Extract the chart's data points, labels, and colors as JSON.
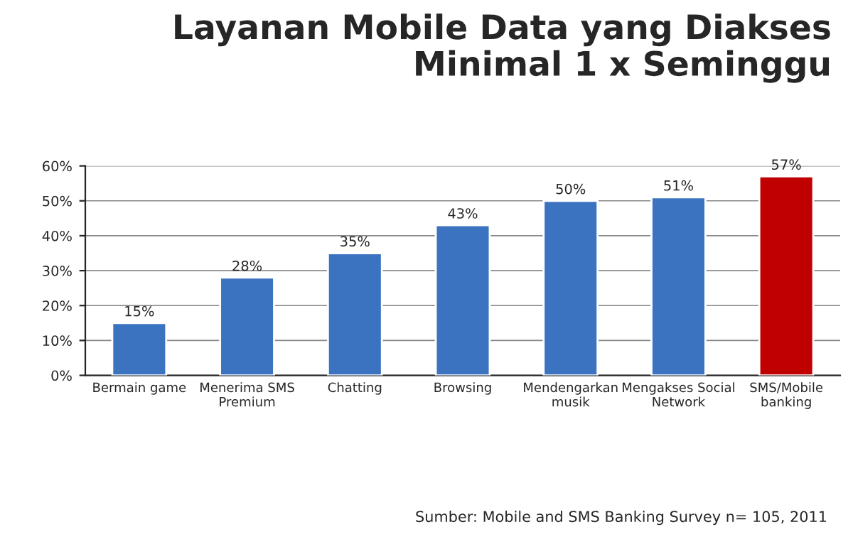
{
  "chart_data": {
    "type": "bar",
    "title": "Layanan Mobile Data yang Diakses\nMinimal 1 x Seminggu",
    "categories": [
      "Bermain game",
      "Menerima SMS\nPremium",
      "Chatting",
      "Browsing",
      "Mendengarkan\nmusik",
      "Mengakses Social\nNetwork",
      "SMS/Mobile\nbanking"
    ],
    "values": [
      15,
      28,
      35,
      43,
      50,
      51,
      57
    ],
    "colors": [
      "#3b73c0",
      "#3b73c0",
      "#3b73c0",
      "#3b73c0",
      "#3b73c0",
      "#3b73c0",
      "#c00000"
    ],
    "value_labels": [
      "15%",
      "28%",
      "35%",
      "43%",
      "50%",
      "51%",
      "57%"
    ],
    "ylim": [
      0,
      60
    ],
    "yticks": [
      {
        "value": 0,
        "label": "0%"
      },
      {
        "value": 10,
        "label": "10%"
      },
      {
        "value": 20,
        "label": "20%"
      },
      {
        "value": 30,
        "label": "30%"
      },
      {
        "value": 40,
        "label": "40%"
      },
      {
        "value": 50,
        "label": "50%"
      },
      {
        "value": 60,
        "label": "60%"
      }
    ],
    "grid": "y",
    "annotations": [
      "Sumber: Mobile and SMS Banking Survey n= 105, 2011"
    ]
  }
}
